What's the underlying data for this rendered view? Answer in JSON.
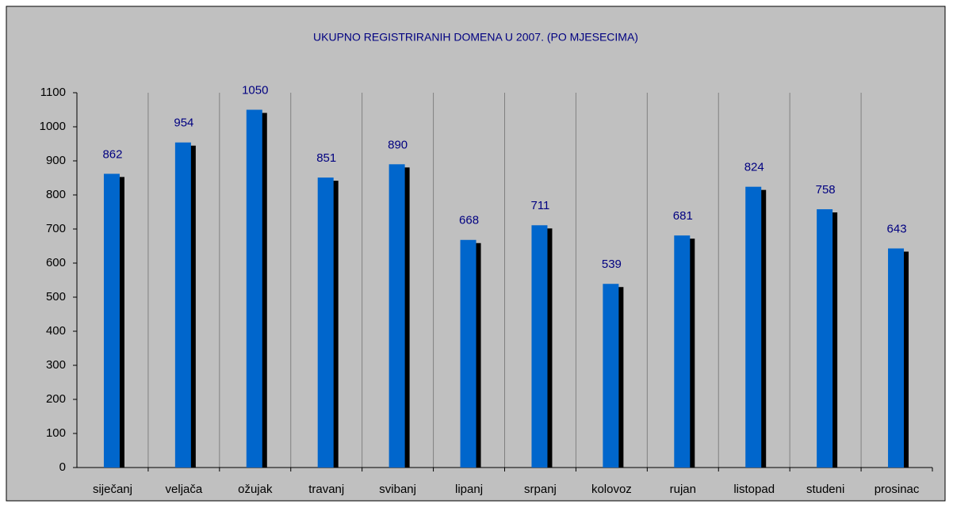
{
  "chart_data": {
    "type": "bar",
    "title": "UKUPNO REGISTRIRANIH DOMENA U 2007. (PO MJESECIMA)",
    "categories": [
      "siječanj",
      "veljača",
      "ožujak",
      "travanj",
      "svibanj",
      "lipanj",
      "srpanj",
      "kolovoz",
      "rujan",
      "listopad",
      "studeni",
      "prosinac"
    ],
    "values": [
      862,
      954,
      1050,
      851,
      890,
      668,
      711,
      539,
      681,
      824,
      758,
      643
    ],
    "color": "#0066cc",
    "ylim": [
      0,
      1100
    ],
    "yticks": [
      0,
      100,
      200,
      300,
      400,
      500,
      600,
      700,
      800,
      900,
      1000,
      1100
    ],
    "grid": true
  }
}
